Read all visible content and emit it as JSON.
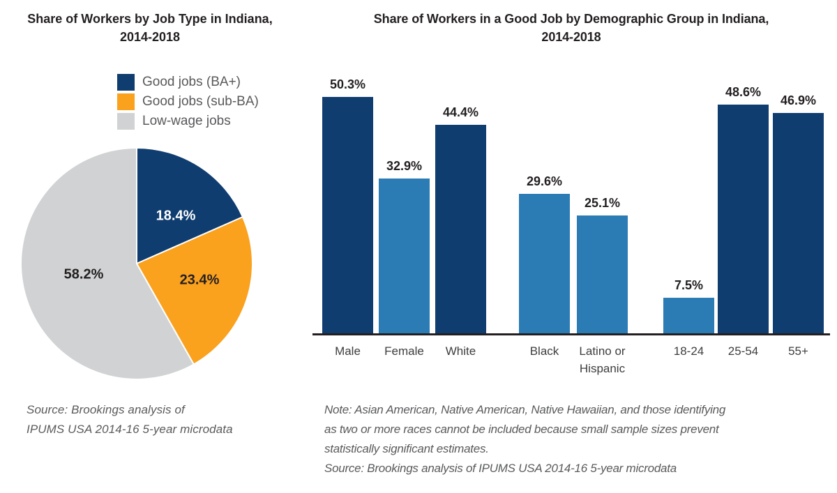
{
  "chart_data": [
    {
      "type": "pie",
      "title": "Share of Workers by Job Type in Indiana,\n2014-2018",
      "start_angle_deg": -90,
      "direction": "clockwise",
      "slices": [
        {
          "label": "Good jobs (BA+)",
          "value": 18.4,
          "display": "18.4%",
          "color": "#0f3d6f",
          "label_color": "#ffffff"
        },
        {
          "label": "Good jobs (sub-BA)",
          "value": 23.4,
          "display": "23.4%",
          "color": "#faa11e",
          "label_color": "#231f20"
        },
        {
          "label": "Low-wage jobs",
          "value": 58.2,
          "display": "58.2%",
          "color": "#d0d2d3",
          "label_color": "#231f20"
        }
      ],
      "legend_position": "top-right",
      "source": "Source: Brookings analysis of\nIPUMS USA 2014-16 5-year microdata"
    },
    {
      "type": "bar",
      "title": "Share of Workers in a Good Job by Demographic Group in Indiana,\n2014-2018",
      "unit": "%",
      "ylim": [
        0,
        55
      ],
      "grid": "off",
      "axis_color": "#231f20",
      "groups": [
        {
          "bars": [
            {
              "category": "Male",
              "value": 50.3,
              "display": "50.3%",
              "color": "#0f3d6f"
            },
            {
              "category": "Female",
              "value": 32.9,
              "display": "32.9%",
              "color": "#2b7bb4"
            },
            {
              "category": "White",
              "value": 44.4,
              "display": "44.4%",
              "color": "#0f3d6f"
            }
          ]
        },
        {
          "bars": [
            {
              "category": "Black",
              "value": 29.6,
              "display": "29.6%",
              "color": "#2b7bb4"
            },
            {
              "category": "Latino or Hispanic",
              "value": 25.1,
              "display": "25.1%",
              "color": "#2b7bb4"
            }
          ]
        },
        {
          "bars": [
            {
              "category": "18-24",
              "value": 7.5,
              "display": "7.5%",
              "color": "#2b7bb4"
            },
            {
              "category": "25-54",
              "value": 48.6,
              "display": "48.6%",
              "color": "#0f3d6f"
            },
            {
              "category": "55+",
              "value": 46.9,
              "display": "46.9%",
              "color": "#0f3d6f"
            }
          ]
        }
      ],
      "note": "Note: Asian American, Native American, Native Hawaiian, and those identifying\nas two or more races cannot be included because small sample sizes prevent\nstatistically significant estimates.\nSource: Brookings analysis of IPUMS USA 2014-16 5-year microdata"
    }
  ]
}
